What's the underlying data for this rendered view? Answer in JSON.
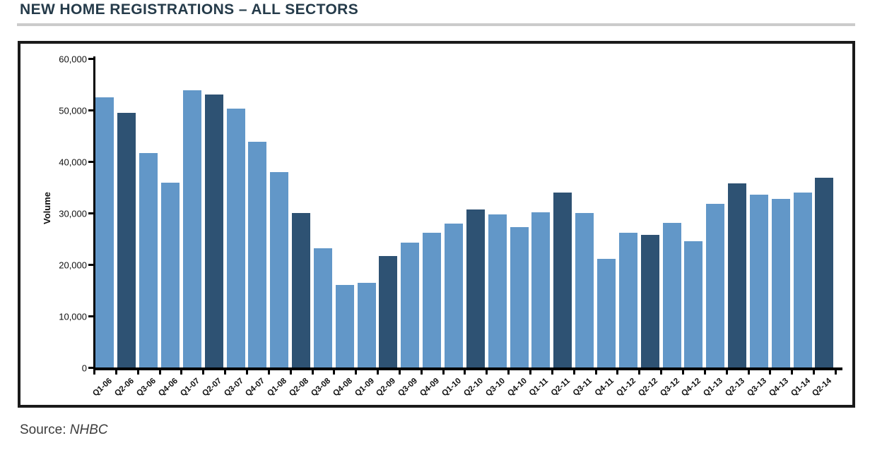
{
  "title": "NEW HOME REGISTRATIONS – ALL SECTORS",
  "source": {
    "label": "Source:",
    "value": "NHBC"
  },
  "colors": {
    "title_text": "#253B4A",
    "title_rule": "#CBCBCB",
    "frame_border": "#1A1A1A",
    "axis": "#000000",
    "bar_light": "#6297C8",
    "bar_dark": "#2E5273",
    "source_text": "#3C3C3C"
  },
  "chart_data": {
    "type": "bar",
    "title": "NEW HOME REGISTRATIONS – ALL SECTORS",
    "xlabel": "",
    "ylabel": "Volume",
    "ylim": [
      0,
      60000
    ],
    "grid": false,
    "legend": "none",
    "bar_color": "#6297C8",
    "highlight_color": "#2E5273",
    "highlighted_categories": [
      "Q2-06",
      "Q2-07",
      "Q2-08",
      "Q2-09",
      "Q2-10",
      "Q2-11",
      "Q2-12",
      "Q2-13",
      "Q2-14"
    ],
    "yticks": [
      {
        "value": 0,
        "label": "0"
      },
      {
        "value": 10000,
        "label": "10,000"
      },
      {
        "value": 20000,
        "label": "20,000"
      },
      {
        "value": 30000,
        "label": "30,000"
      },
      {
        "value": 40000,
        "label": "40,000"
      },
      {
        "value": 50000,
        "label": "50,000"
      },
      {
        "value": 60000,
        "label": "60,000"
      }
    ],
    "categories": [
      "Q1-06",
      "Q2-06",
      "Q3-06",
      "Q4-06",
      "Q1-07",
      "Q2-07",
      "Q3-07",
      "Q4-07",
      "Q1-08",
      "Q2-08",
      "Q3-08",
      "Q4-08",
      "Q1-09",
      "Q2-09",
      "Q3-09",
      "Q4-09",
      "Q1-10",
      "Q2-10",
      "Q3-10",
      "Q4-10",
      "Q1-11",
      "Q2-11",
      "Q3-11",
      "Q4-11",
      "Q1-12",
      "Q2-12",
      "Q3-12",
      "Q4-12",
      "Q1-13",
      "Q2-13",
      "Q3-13",
      "Q4-13",
      "Q1-14",
      "Q2-14"
    ],
    "values": [
      52500,
      49400,
      41700,
      35900,
      53900,
      53000,
      50300,
      43900,
      37900,
      30000,
      23200,
      16000,
      16400,
      21700,
      24200,
      26100,
      28000,
      30700,
      29700,
      27200,
      30100,
      34000,
      30000,
      21100,
      26100,
      25800,
      28100,
      24500,
      31800,
      35700,
      33600,
      32700,
      34000,
      36900
    ]
  }
}
